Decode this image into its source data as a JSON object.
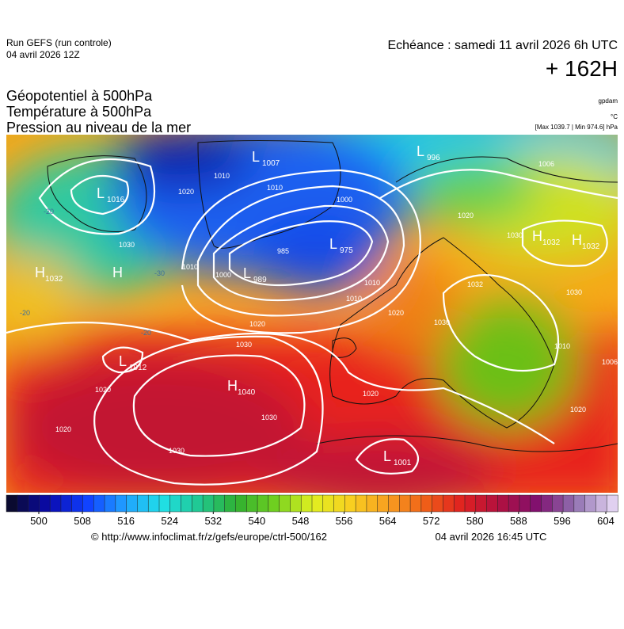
{
  "header": {
    "run": "Run GEFS (run controle)",
    "run_date": "04 avril 2026 12Z",
    "echeance": "Echéance : samedi 11 avril 2026 6h UTC",
    "lead": "+ 162H",
    "fields": [
      "Géopotentiel à 500hPa",
      "Température à 500hPa",
      "Pression au niveau de la mer"
    ],
    "units": [
      "gpdam",
      "°C",
      "[Max 1039.7 | Min 974.6] hPa"
    ]
  },
  "centers": [
    {
      "type": "L",
      "value": "1016"
    },
    {
      "type": "L",
      "value": "1007"
    },
    {
      "type": "L",
      "value": "996"
    },
    {
      "type": "L",
      "value": "975"
    },
    {
      "type": "L",
      "value": "989"
    },
    {
      "type": "H",
      "value": "1032"
    },
    {
      "type": "H",
      "value": null
    },
    {
      "type": "L",
      "value": "1012"
    },
    {
      "type": "H",
      "value": "1040"
    },
    {
      "type": "L",
      "value": "1001"
    },
    {
      "type": "H",
      "value": "1032"
    },
    {
      "type": "H",
      "value": "1032"
    }
  ],
  "isobar_labels": [
    "1010",
    "1020",
    "1010",
    "1010",
    "1000",
    "1010",
    "985",
    "1000",
    "1030",
    "1020",
    "1030",
    "1020",
    "1030",
    "1020",
    "1030",
    "1010",
    "1020",
    "1020",
    "1030",
    "1032",
    "1030",
    "1020",
    "1030",
    "1010",
    "1020",
    "1006",
    "1006",
    "-20",
    "-30",
    "-20",
    "-20"
  ],
  "colorbar_ticks": [
    500,
    508,
    516,
    524,
    532,
    540,
    548,
    556,
    564,
    572,
    580,
    588,
    596,
    604
  ],
  "footer": {
    "source": "© http://www.infoclimat.fr/z/gefs/europe/ctrl-500/162",
    "created": "04 avril 2026 16:45 UTC"
  }
}
